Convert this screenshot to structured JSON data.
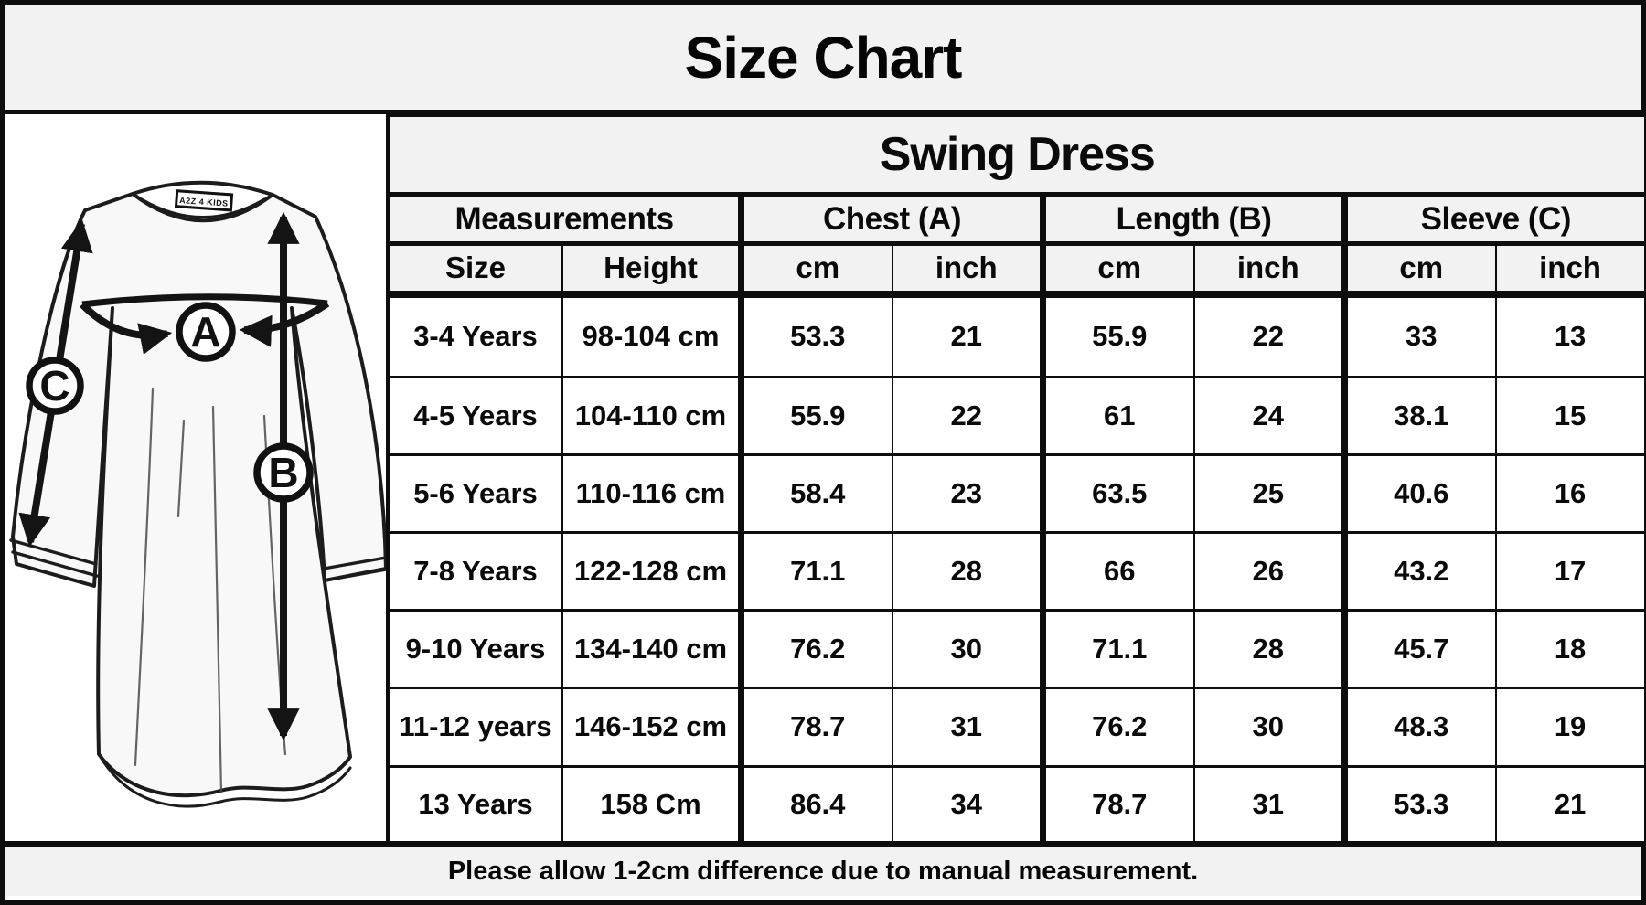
{
  "title": "Size Chart",
  "product": "Swing Dress",
  "footer_note": "Please allow 1-2cm difference due to manual measurement.",
  "diagram": {
    "collar_brand": "A2Z 4 KIDS",
    "point_a": "A",
    "point_b": "B",
    "point_c": "C"
  },
  "table": {
    "group_headers": [
      {
        "label": "Measurements"
      },
      {
        "label": "Chest (A)"
      },
      {
        "label": "Length (B)"
      },
      {
        "label": "Sleeve (C)"
      }
    ],
    "sub_headers": [
      "Size",
      "Height",
      "cm",
      "inch",
      "cm",
      "inch",
      "cm",
      "inch"
    ]
  },
  "colors": {
    "panel_gray": "#f2f2f2",
    "line_black": "#0d0d0d"
  },
  "chart_data": {
    "type": "table",
    "title": "Size Chart",
    "subtitle": "Swing Dress",
    "column_groups": [
      "Measurements",
      "Chest (A)",
      "Length (B)",
      "Sleeve (C)"
    ],
    "columns": [
      "Size",
      "Height",
      "Chest (A) cm",
      "Chest (A) inch",
      "Length (B) cm",
      "Length (B) inch",
      "Sleeve (C) cm",
      "Sleeve (C) inch"
    ],
    "rows": [
      [
        "3-4 Years",
        "98-104 cm",
        "53.3",
        "21",
        "55.9",
        "22",
        "33",
        "13"
      ],
      [
        "4-5 Years",
        "104-110 cm",
        "55.9",
        "22",
        "61",
        "24",
        "38.1",
        "15"
      ],
      [
        "5-6 Years",
        "110-116 cm",
        "58.4",
        "23",
        "63.5",
        "25",
        "40.6",
        "16"
      ],
      [
        "7-8 Years",
        "122-128 cm",
        "71.1",
        "28",
        "66",
        "26",
        "43.2",
        "17"
      ],
      [
        "9-10 Years",
        "134-140 cm",
        "76.2",
        "30",
        "71.1",
        "28",
        "45.7",
        "18"
      ],
      [
        "11-12 years",
        "146-152 cm",
        "78.7",
        "31",
        "76.2",
        "30",
        "48.3",
        "19"
      ],
      [
        "13 Years",
        "158 Cm",
        "86.4",
        "34",
        "78.7",
        "31",
        "53.3",
        "21"
      ]
    ],
    "note": "Please allow 1-2cm difference due to manual measurement."
  }
}
